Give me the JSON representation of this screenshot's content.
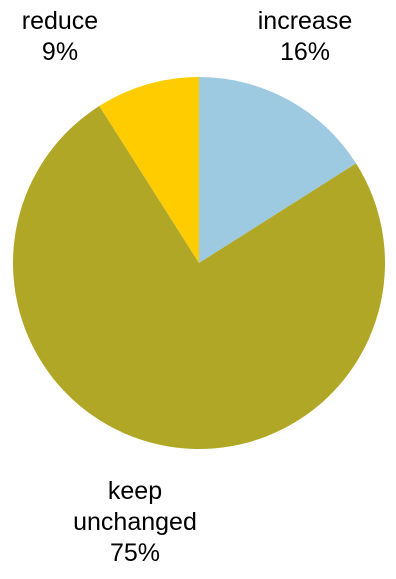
{
  "chart_data": {
    "type": "pie",
    "slices": [
      {
        "label": "increase",
        "value": 16,
        "value_label": "16%",
        "color": "#9ecae1"
      },
      {
        "label": "keep unchanged",
        "label_lines": [
          "keep",
          "unchanged"
        ],
        "value": 75,
        "value_label": "75%",
        "color": "#b0a727"
      },
      {
        "label": "reduce",
        "value": 9,
        "value_label": "9%",
        "color": "#ffcc00"
      }
    ],
    "start_angle_deg": 0,
    "direction": "clockwise",
    "legend": "none",
    "data_labels": "outside"
  }
}
